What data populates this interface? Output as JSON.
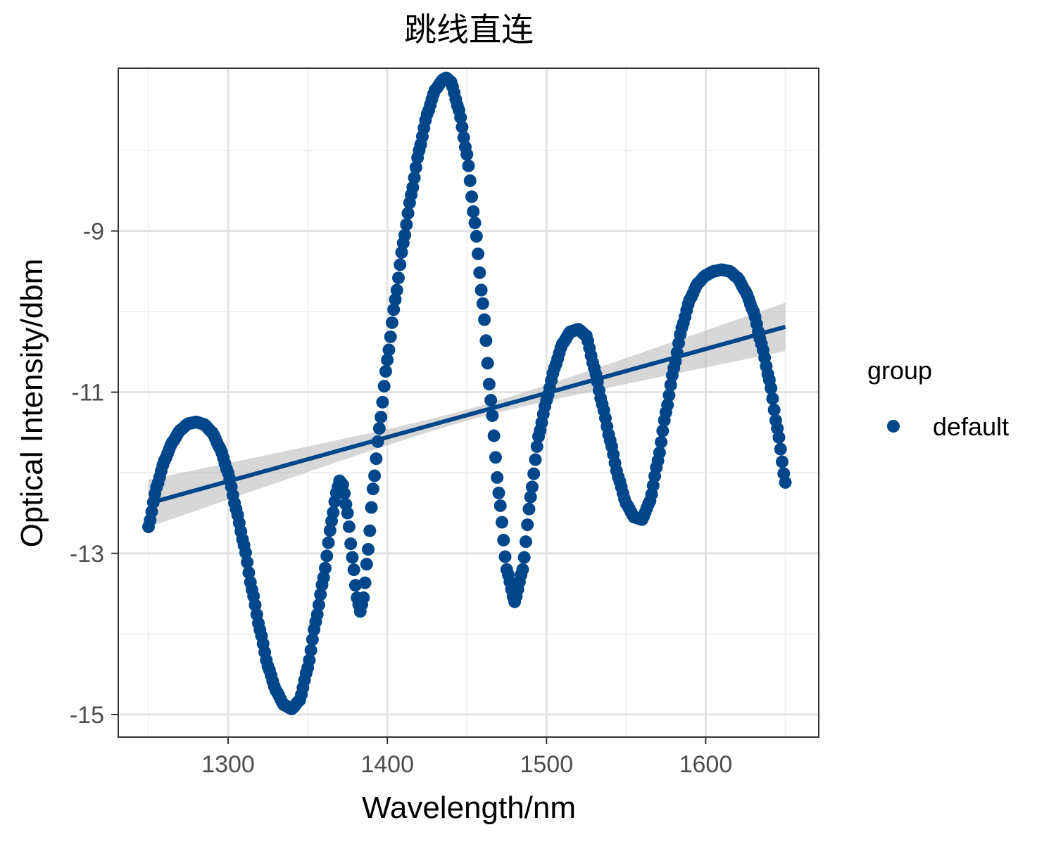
{
  "chart_data": {
    "type": "scatter",
    "title": "跳线直连",
    "xlabel": "Wavelength/nm",
    "ylabel": "Optical Intensity/dbm",
    "xlim": [
      1231,
      1671
    ],
    "ylim": [
      -15.28,
      -6.98
    ],
    "xticks": [
      1300,
      1400,
      1500,
      1600
    ],
    "yticks": [
      -15,
      -13,
      -11,
      -9
    ],
    "xtick_labels": [
      "1300",
      "1400",
      "1500",
      "1600"
    ],
    "ytick_labels": [
      "-15",
      "-13",
      "-11",
      "-9"
    ],
    "grid": true,
    "legend": {
      "title": "group",
      "placement": "right",
      "entries": [
        "default"
      ]
    },
    "colors": {
      "points": "#00468B",
      "fit_line": "#00468B",
      "confidence_band": "#bdbdbd"
    },
    "series": [
      {
        "name": "default",
        "x_range": [
          1250,
          1650
        ],
        "x_step": 1,
        "control_points": [
          [
            1250,
            -12.67
          ],
          [
            1255,
            -12.18
          ],
          [
            1260,
            -11.85
          ],
          [
            1265,
            -11.62
          ],
          [
            1270,
            -11.47
          ],
          [
            1275,
            -11.39
          ],
          [
            1280,
            -11.37
          ],
          [
            1285,
            -11.4
          ],
          [
            1290,
            -11.5
          ],
          [
            1295,
            -11.7
          ],
          [
            1300,
            -12.0
          ],
          [
            1305,
            -12.45
          ],
          [
            1310,
            -12.9
          ],
          [
            1315,
            -13.45
          ],
          [
            1320,
            -13.95
          ],
          [
            1325,
            -14.4
          ],
          [
            1330,
            -14.7
          ],
          [
            1335,
            -14.88
          ],
          [
            1340,
            -14.93
          ],
          [
            1345,
            -14.82
          ],
          [
            1350,
            -14.42
          ],
          [
            1355,
            -13.85
          ],
          [
            1360,
            -13.3
          ],
          [
            1365,
            -12.6
          ],
          [
            1368,
            -12.25
          ],
          [
            1370,
            -12.1
          ],
          [
            1372,
            -12.15
          ],
          [
            1375,
            -12.5
          ],
          [
            1378,
            -13.05
          ],
          [
            1381,
            -13.55
          ],
          [
            1383,
            -13.72
          ],
          [
            1385,
            -13.55
          ],
          [
            1388,
            -12.95
          ],
          [
            1391,
            -12.2
          ],
          [
            1395,
            -11.45
          ],
          [
            1400,
            -10.6
          ],
          [
            1405,
            -9.85
          ],
          [
            1410,
            -9.15
          ],
          [
            1415,
            -8.55
          ],
          [
            1420,
            -8.0
          ],
          [
            1425,
            -7.55
          ],
          [
            1430,
            -7.25
          ],
          [
            1435,
            -7.12
          ],
          [
            1437,
            -7.1
          ],
          [
            1440,
            -7.15
          ],
          [
            1445,
            -7.5
          ],
          [
            1450,
            -8.05
          ],
          [
            1455,
            -8.9
          ],
          [
            1460,
            -9.9
          ],
          [
            1465,
            -11.1
          ],
          [
            1470,
            -12.25
          ],
          [
            1475,
            -13.2
          ],
          [
            1480,
            -13.6
          ],
          [
            1485,
            -13.2
          ],
          [
            1490,
            -12.3
          ],
          [
            1495,
            -11.55
          ],
          [
            1500,
            -11.1
          ],
          [
            1505,
            -10.7
          ],
          [
            1510,
            -10.4
          ],
          [
            1515,
            -10.25
          ],
          [
            1520,
            -10.22
          ],
          [
            1525,
            -10.3
          ],
          [
            1530,
            -10.7
          ],
          [
            1535,
            -11.15
          ],
          [
            1540,
            -11.6
          ],
          [
            1545,
            -12.05
          ],
          [
            1550,
            -12.38
          ],
          [
            1555,
            -12.55
          ],
          [
            1560,
            -12.58
          ],
          [
            1565,
            -12.35
          ],
          [
            1570,
            -11.85
          ],
          [
            1575,
            -11.25
          ],
          [
            1580,
            -10.7
          ],
          [
            1585,
            -10.2
          ],
          [
            1590,
            -9.85
          ],
          [
            1595,
            -9.65
          ],
          [
            1600,
            -9.55
          ],
          [
            1605,
            -9.5
          ],
          [
            1610,
            -9.48
          ],
          [
            1615,
            -9.5
          ],
          [
            1620,
            -9.58
          ],
          [
            1625,
            -9.75
          ],
          [
            1630,
            -10.0
          ],
          [
            1635,
            -10.4
          ],
          [
            1640,
            -10.85
          ],
          [
            1645,
            -11.45
          ],
          [
            1650,
            -12.12
          ]
        ]
      }
    ],
    "regression": {
      "type": "linear",
      "x": [
        1250,
        1650
      ],
      "y": [
        -12.38,
        -10.19
      ],
      "ci_low": [
        -12.67,
        -10.49
      ],
      "ci_high": [
        -12.08,
        -9.89
      ],
      "ci_mid_x": 1450,
      "ci_mid_halfwidth": 0.07
    }
  }
}
